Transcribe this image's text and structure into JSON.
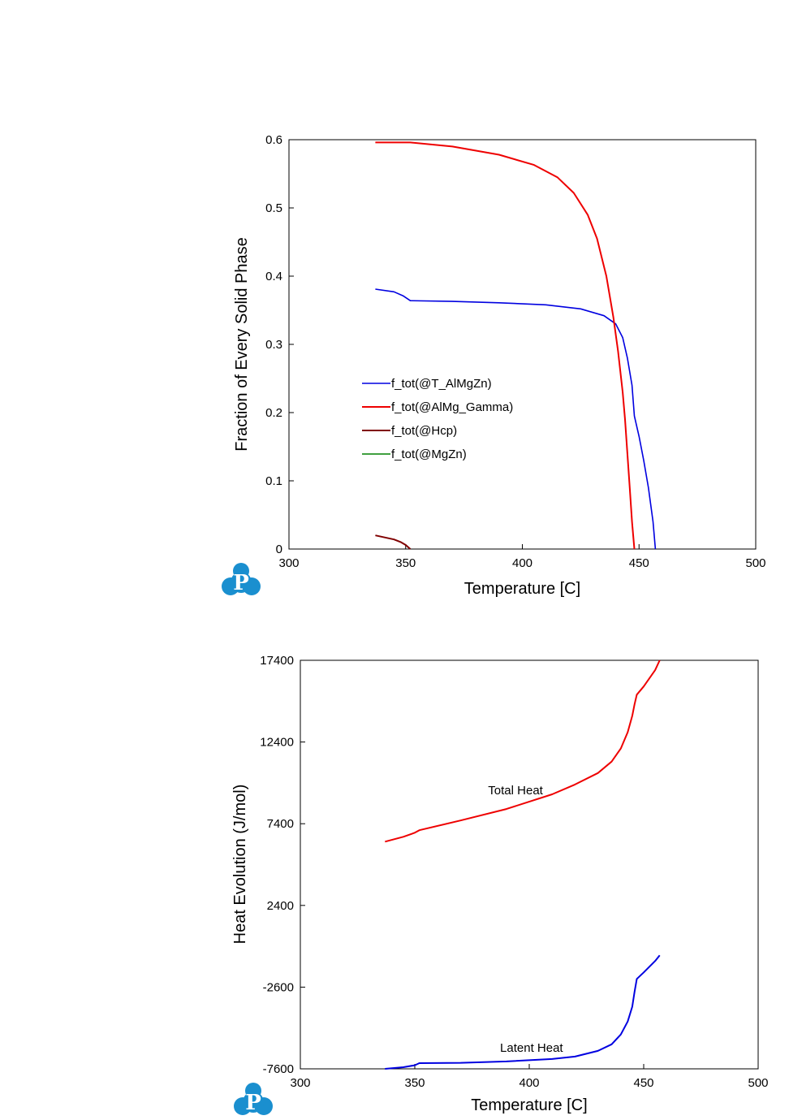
{
  "colors": {
    "blue": "#0000e0",
    "red": "#ee0000",
    "darkred": "#800000",
    "green": "#008000",
    "logo": "#1a8fcf"
  },
  "logo": {
    "letter": "P"
  },
  "chart_data": [
    {
      "type": "line",
      "xlabel": "Temperature [C]",
      "ylabel": "Fraction of Every Solid Phase",
      "xlim": [
        300,
        500
      ],
      "ylim": [
        0,
        0.6
      ],
      "xticks": [
        300,
        350,
        400,
        450,
        500
      ],
      "yticks": [
        0,
        0.1,
        0.2,
        0.3,
        0.4,
        0.5,
        0.6
      ],
      "xtick_labels": [
        "300",
        "350",
        "400",
        "450",
        "500"
      ],
      "ytick_labels": [
        "0",
        "0.1",
        "0.2",
        "0.3",
        "0.4",
        "0.5",
        "0.6"
      ],
      "legend_placement": "center-left",
      "series": [
        {
          "name": "f_tot(@T_AlMgZn)",
          "color": "#0000e0",
          "width": 1.6,
          "x": [
            337,
            345,
            349,
            352,
            370,
            390,
            410,
            425,
            435,
            440,
            443,
            445,
            447,
            448,
            450,
            452,
            454,
            456,
            457
          ],
          "y": [
            0.381,
            0.377,
            0.371,
            0.364,
            0.363,
            0.361,
            0.358,
            0.352,
            0.342,
            0.33,
            0.31,
            0.28,
            0.24,
            0.195,
            0.165,
            0.13,
            0.09,
            0.04,
            0.0
          ]
        },
        {
          "name": "f_tot(@AlMg_Gamma)",
          "color": "#ee0000",
          "width": 2,
          "x": [
            337,
            352,
            370,
            390,
            405,
            415,
            422,
            428,
            432,
            436,
            439,
            441,
            443,
            444,
            445,
            446,
            447,
            448
          ],
          "y": [
            0.596,
            0.596,
            0.59,
            0.578,
            0.563,
            0.545,
            0.522,
            0.49,
            0.455,
            0.4,
            0.34,
            0.29,
            0.23,
            0.19,
            0.14,
            0.09,
            0.04,
            0.0
          ]
        },
        {
          "name": "f_tot(@Hcp)",
          "color": "#800000",
          "width": 2,
          "x": [
            337,
            341,
            345,
            348,
            350,
            352
          ],
          "y": [
            0.02,
            0.017,
            0.014,
            0.01,
            0.006,
            0.0
          ]
        },
        {
          "name": "f_tot(@MgZn)",
          "color": "#008000",
          "width": 1.6,
          "x": [],
          "y": []
        }
      ]
    },
    {
      "type": "line",
      "xlabel": "Temperature [C]",
      "ylabel": "Heat Evolution (J/mol)",
      "xlim": [
        300,
        500
      ],
      "ylim": [
        -7600,
        17400
      ],
      "xticks": [
        300,
        350,
        400,
        450,
        500
      ],
      "yticks": [
        -7600,
        -2600,
        2400,
        7400,
        12400,
        17400
      ],
      "xtick_labels": [
        "300",
        "350",
        "400",
        "450",
        "500"
      ],
      "ytick_labels": [
        "-7600",
        "-2600",
        "2400",
        "7400",
        "12400",
        "17400"
      ],
      "annotations": [
        {
          "text": "Total Heat",
          "x": 394,
          "y": 9200
        },
        {
          "text": "Latent Heat",
          "x": 401,
          "y": -6550
        }
      ],
      "series": [
        {
          "name": "Total Heat",
          "color": "#ee0000",
          "width": 2,
          "x": [
            337,
            345,
            350,
            352,
            370,
            390,
            410,
            420,
            430,
            436,
            440,
            443,
            445,
            446,
            447,
            450,
            455,
            457
          ],
          "y": [
            6300,
            6600,
            6850,
            7000,
            7600,
            8300,
            9200,
            9800,
            10500,
            11200,
            12000,
            13000,
            14000,
            14700,
            15300,
            15800,
            16800,
            17400
          ]
        },
        {
          "name": "Latent Heat",
          "color": "#0000e0",
          "width": 2,
          "x": [
            337,
            345,
            350,
            352,
            370,
            390,
            410,
            420,
            430,
            436,
            440,
            443,
            445,
            446,
            447,
            450,
            455,
            457
          ],
          "y": [
            -7600,
            -7500,
            -7380,
            -7250,
            -7230,
            -7150,
            -7000,
            -6850,
            -6500,
            -6100,
            -5500,
            -4700,
            -3800,
            -2900,
            -2100,
            -1700,
            -1000,
            -650
          ]
        }
      ]
    }
  ]
}
